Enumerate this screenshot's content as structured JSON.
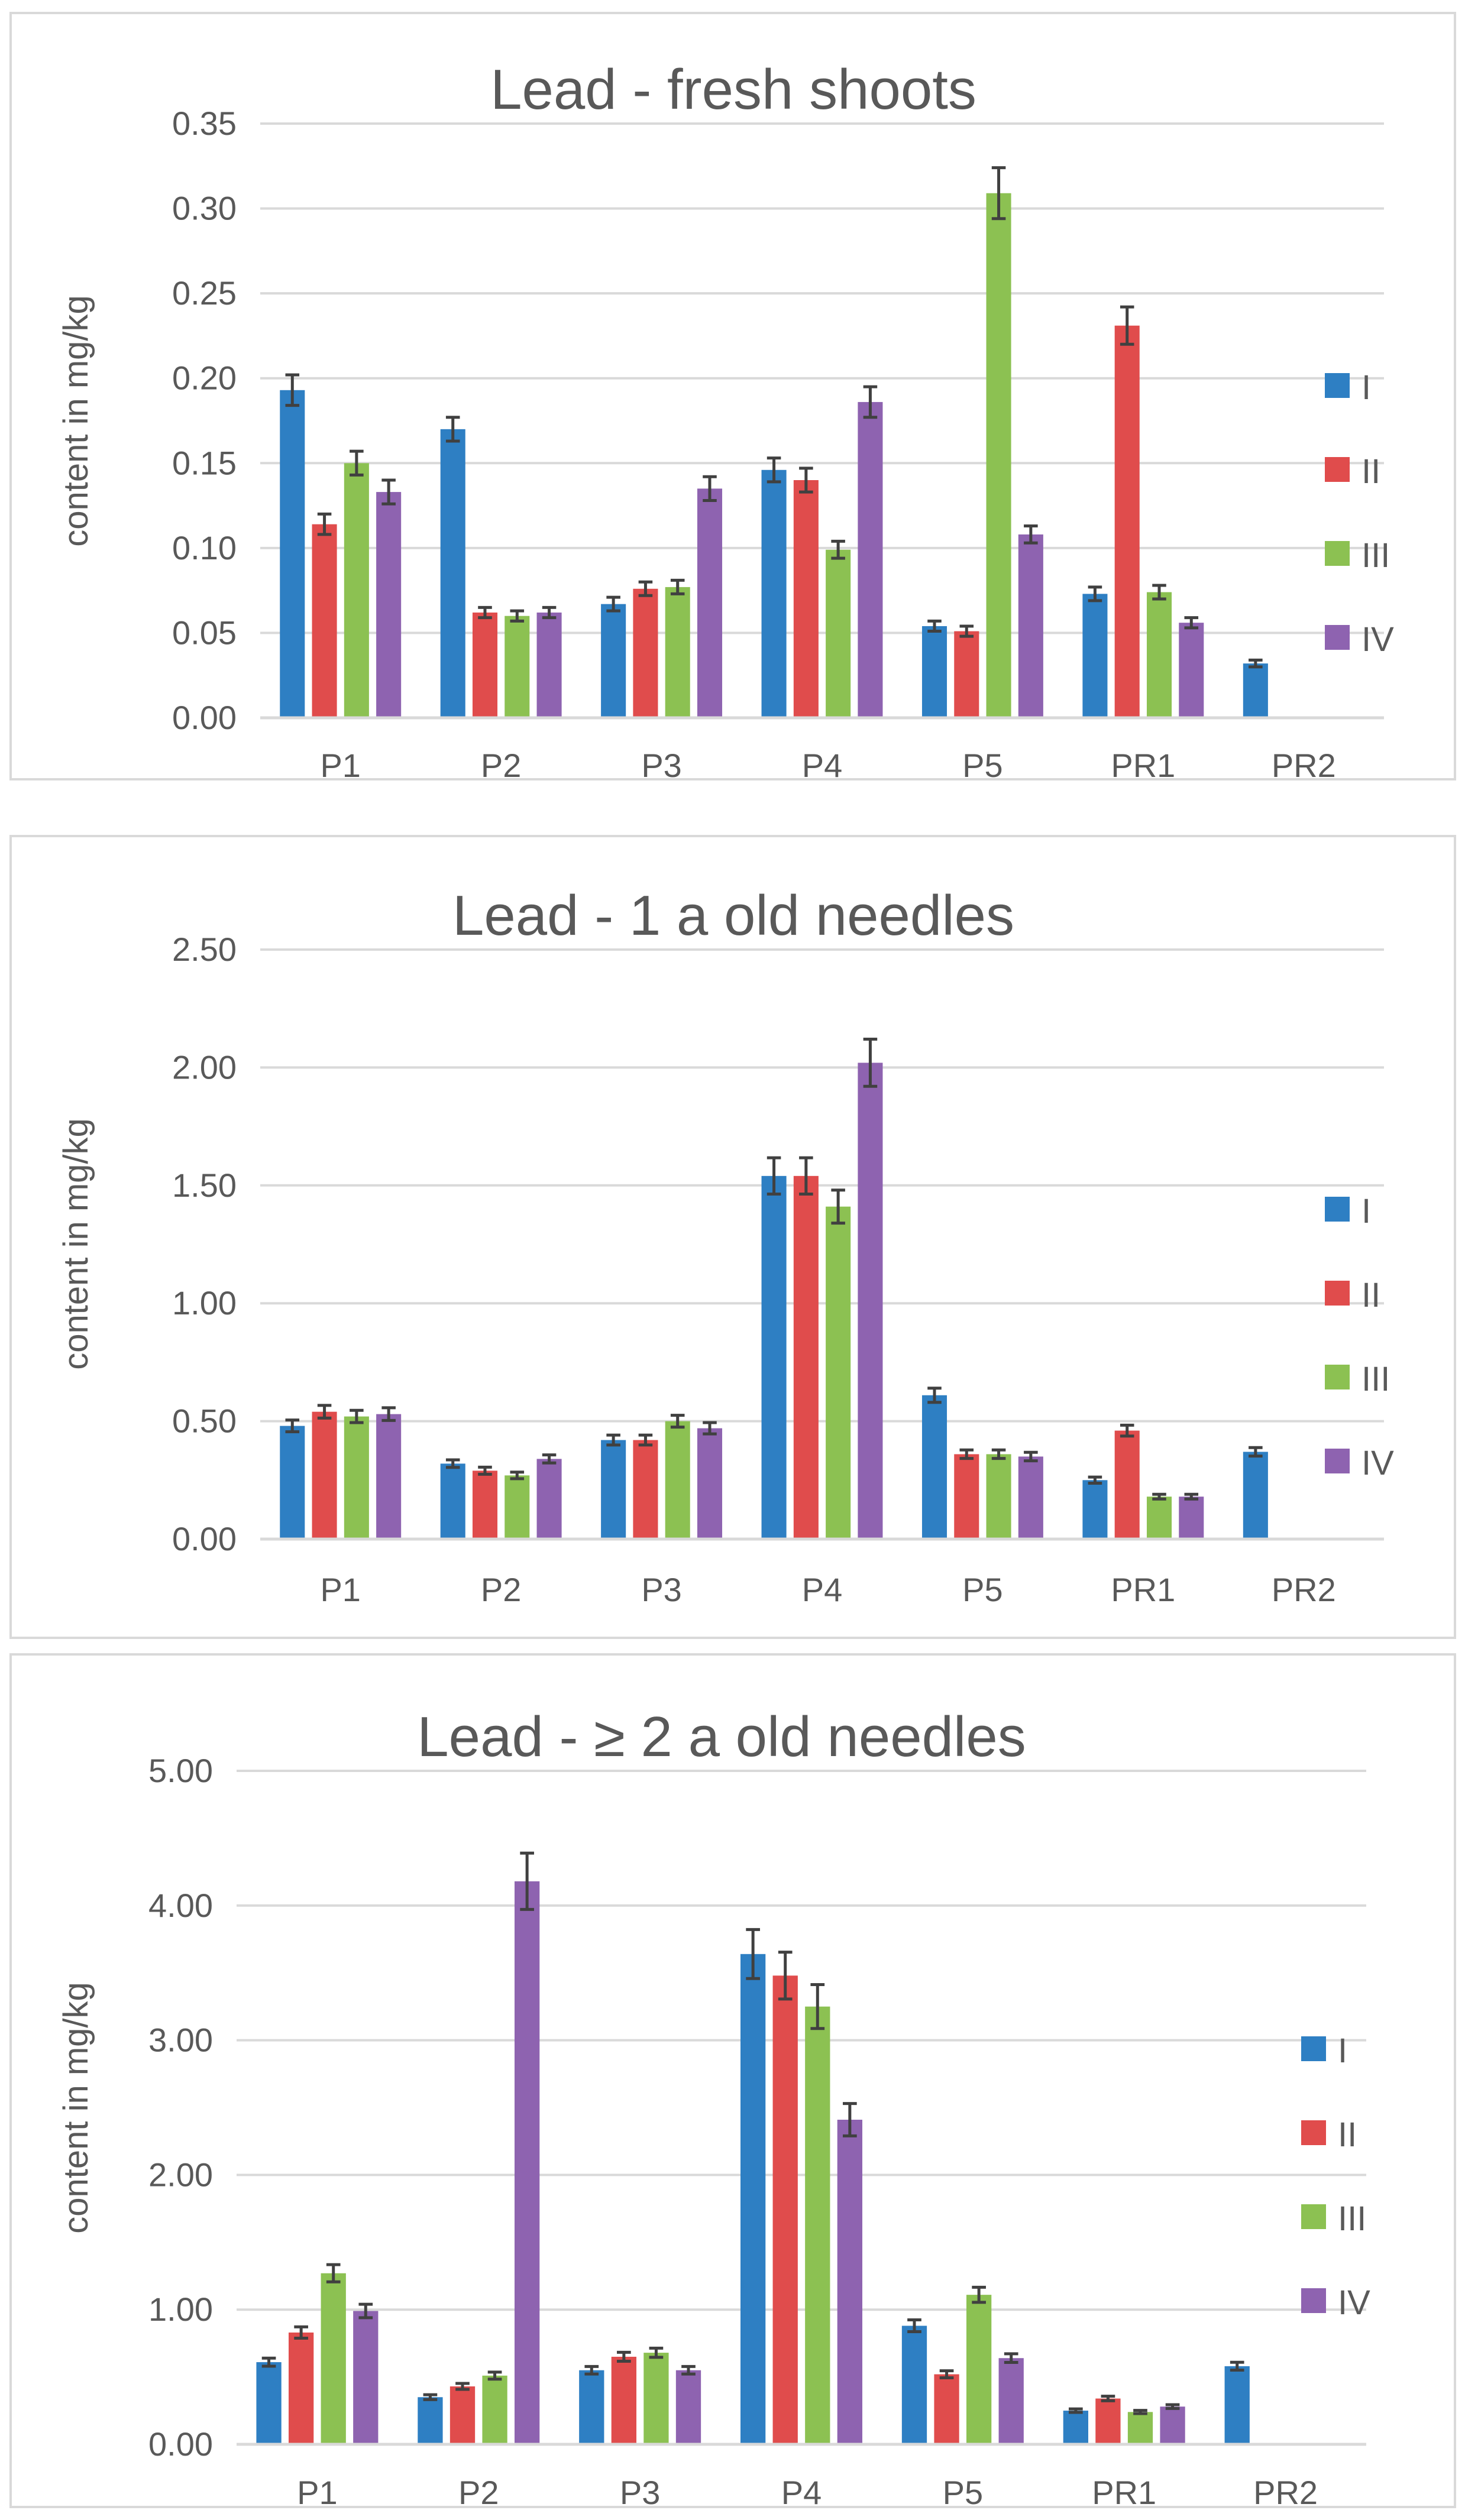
{
  "colors": {
    "I": "#2e7fc3",
    "II": "#e04c4c",
    "III": "#8cc152",
    "IV": "#8e63b0",
    "grid": "#d9d9d9",
    "error": "#404040",
    "text": "#595959"
  },
  "chart_data": [
    {
      "type": "bar",
      "title": "Lead - fresh shoots",
      "ylabel": "content in mg/kg",
      "xlabel": "",
      "ylim": [
        0,
        0.35
      ],
      "yticks": [
        "0.00",
        "0.05",
        "0.10",
        "0.15",
        "0.20",
        "0.25",
        "0.30",
        "0.35"
      ],
      "categories": [
        "P1",
        "P2",
        "P3",
        "P4",
        "P5",
        "PR1",
        "PR2"
      ],
      "legend_position": "right",
      "series": [
        {
          "name": "I",
          "values": [
            0.193,
            0.17,
            0.067,
            0.146,
            0.054,
            0.073,
            0.032
          ],
          "errors": [
            0.009,
            0.007,
            0.004,
            0.007,
            0.003,
            0.004,
            0.002
          ]
        },
        {
          "name": "II",
          "values": [
            0.114,
            0.062,
            0.076,
            0.14,
            0.051,
            0.231,
            null
          ],
          "errors": [
            0.006,
            0.003,
            0.004,
            0.007,
            0.003,
            0.011,
            null
          ]
        },
        {
          "name": "III",
          "values": [
            0.15,
            0.06,
            0.077,
            0.099,
            0.309,
            0.074,
            null
          ],
          "errors": [
            0.007,
            0.003,
            0.004,
            0.005,
            0.015,
            0.004,
            null
          ]
        },
        {
          "name": "IV",
          "values": [
            0.133,
            0.062,
            0.135,
            0.186,
            0.108,
            0.056,
            null
          ],
          "errors": [
            0.007,
            0.003,
            0.007,
            0.009,
            0.005,
            0.003,
            null
          ]
        }
      ]
    },
    {
      "type": "bar",
      "title": "Lead - 1 a old needles",
      "ylabel": "content in mg/kg",
      "xlabel": "",
      "ylim": [
        0,
        2.5
      ],
      "yticks": [
        "0.00",
        "0.50",
        "1.00",
        "1.50",
        "2.00",
        "2.50"
      ],
      "categories": [
        "P1",
        "P2",
        "P3",
        "P4",
        "P5",
        "PR1",
        "PR2"
      ],
      "legend_position": "right",
      "series": [
        {
          "name": "I",
          "values": [
            0.48,
            0.32,
            0.42,
            1.54,
            0.61,
            0.25,
            0.37
          ],
          "errors": [
            0.025,
            0.016,
            0.021,
            0.077,
            0.03,
            0.013,
            0.018
          ]
        },
        {
          "name": "II",
          "values": [
            0.54,
            0.29,
            0.42,
            1.54,
            0.36,
            0.46,
            null
          ],
          "errors": [
            0.027,
            0.015,
            0.021,
            0.077,
            0.018,
            0.023,
            null
          ]
        },
        {
          "name": "III",
          "values": [
            0.52,
            0.27,
            0.5,
            1.41,
            0.36,
            0.18,
            null
          ],
          "errors": [
            0.026,
            0.014,
            0.025,
            0.07,
            0.018,
            0.01,
            null
          ]
        },
        {
          "name": "IV",
          "values": [
            0.53,
            0.34,
            0.47,
            2.02,
            0.35,
            0.18,
            null
          ],
          "errors": [
            0.027,
            0.017,
            0.024,
            0.1,
            0.018,
            0.01,
            null
          ]
        }
      ]
    },
    {
      "type": "bar",
      "title": "Lead - ≥ 2 a old needles",
      "ylabel": "content in mg/kg",
      "xlabel": "",
      "ylim": [
        0,
        5.0
      ],
      "yticks": [
        "0.00",
        "1.00",
        "2.00",
        "3.00",
        "4.00",
        "5.00"
      ],
      "categories": [
        "P1",
        "P2",
        "P3",
        "P4",
        "P5",
        "PR1",
        "PR2"
      ],
      "legend_position": "right",
      "series": [
        {
          "name": "I",
          "values": [
            0.61,
            0.35,
            0.55,
            3.64,
            0.88,
            0.25,
            0.58
          ],
          "errors": [
            0.03,
            0.018,
            0.028,
            0.182,
            0.044,
            0.013,
            0.029
          ]
        },
        {
          "name": "II",
          "values": [
            0.83,
            0.43,
            0.65,
            3.48,
            0.52,
            0.34,
            null
          ],
          "errors": [
            0.042,
            0.022,
            0.033,
            0.174,
            0.026,
            0.017,
            null
          ]
        },
        {
          "name": "III",
          "values": [
            1.27,
            0.51,
            0.68,
            3.25,
            1.11,
            0.24,
            null
          ],
          "errors": [
            0.064,
            0.026,
            0.034,
            0.163,
            0.056,
            0.012,
            null
          ]
        },
        {
          "name": "IV",
          "values": [
            0.99,
            4.18,
            0.55,
            2.41,
            0.64,
            0.28,
            null
          ],
          "errors": [
            0.05,
            0.209,
            0.028,
            0.12,
            0.032,
            0.014,
            null
          ]
        }
      ]
    }
  ]
}
